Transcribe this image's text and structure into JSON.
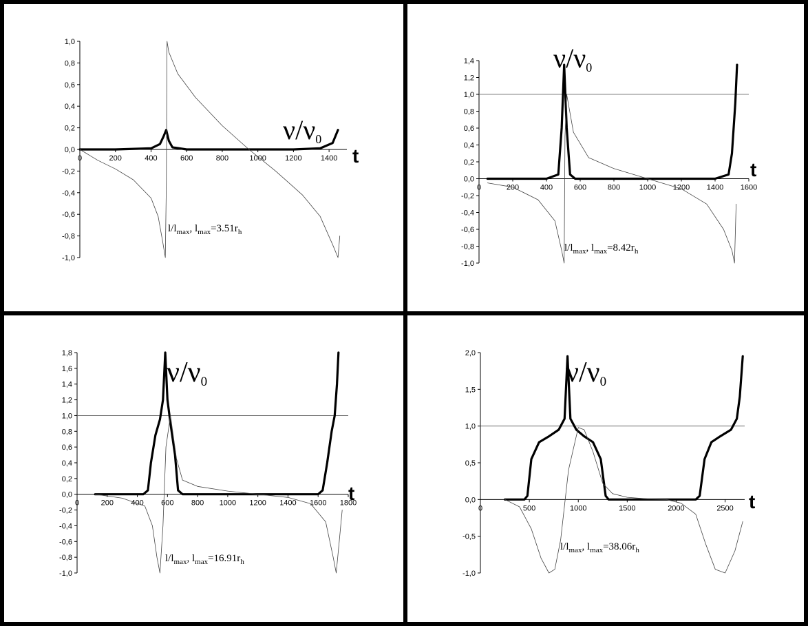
{
  "chart_data": [
    {
      "type": "line",
      "panel": "top-left",
      "xlabel": "t",
      "series_label": "ν/ν0",
      "annotation": "l/lmax, lmax=3.51rh",
      "ylim": [
        -1.0,
        1.0
      ],
      "xlim": [
        0,
        1500
      ],
      "y_ticks": [
        "1,0",
        "0,8",
        "0,6",
        "0,4",
        "0,2",
        "0,0",
        "-0,2",
        "-0,4",
        "-0,6",
        "-0,8",
        "-1,0"
      ],
      "x_ticks": [
        "0",
        "200",
        "400",
        "600",
        "800",
        "1000",
        "1200",
        "1400"
      ],
      "reference_line": null,
      "series": [
        {
          "style": "thick",
          "x": [
            0,
            200,
            400,
            450,
            470,
            485,
            500,
            520,
            600,
            800,
            1000,
            1200,
            1350,
            1420,
            1450
          ],
          "y": [
            0,
            0,
            0.01,
            0.05,
            0.12,
            0.18,
            0.08,
            0.02,
            0,
            0,
            0,
            0,
            0.01,
            0.06,
            0.18
          ]
        },
        {
          "style": "thin",
          "x": [
            0,
            100,
            200,
            300,
            400,
            440,
            465,
            480,
            486,
            490,
            500,
            550,
            650,
            800,
            950,
            1100,
            1250,
            1350,
            1420,
            1450,
            1460
          ],
          "y": [
            0,
            -0.1,
            -0.18,
            -0.28,
            -0.45,
            -0.62,
            -0.85,
            -1.0,
            -0.3,
            1.0,
            0.9,
            0.7,
            0.48,
            0.22,
            0,
            -0.2,
            -0.42,
            -0.62,
            -0.88,
            -1.0,
            -0.8
          ]
        }
      ]
    },
    {
      "type": "line",
      "panel": "top-right",
      "xlabel": "t",
      "series_label": "ν/ν0",
      "annotation": "l/lmax, lmax=8.42rh",
      "ylim": [
        -1.0,
        1.4
      ],
      "xlim": [
        0,
        1600
      ],
      "y_ticks": [
        "1,4",
        "1,2",
        "1,0",
        "0,8",
        "0,6",
        "0,4",
        "0,2",
        "0,0",
        "-0,2",
        "-0,4",
        "-0,6",
        "-0,8",
        "-1,0"
      ],
      "x_ticks": [
        "0",
        "200",
        "400",
        "600",
        "800",
        "1000",
        "1200",
        "1400",
        "1600"
      ],
      "reference_line": 1.0,
      "series": [
        {
          "style": "thick",
          "x": [
            50,
            400,
            470,
            490,
            505,
            520,
            540,
            570,
            800,
            1400,
            1480,
            1500,
            1520,
            1530
          ],
          "y": [
            0,
            0,
            0.05,
            0.6,
            1.35,
            0.6,
            0.05,
            0,
            0,
            0,
            0.05,
            0.3,
            0.9,
            1.35
          ]
        },
        {
          "style": "thin",
          "x": [
            50,
            200,
            350,
            450,
            490,
            505,
            510,
            520,
            560,
            650,
            800,
            1000,
            1200,
            1350,
            1450,
            1500,
            1515,
            1525
          ],
          "y": [
            -0.05,
            -0.1,
            -0.25,
            -0.5,
            -0.85,
            -1.0,
            0.5,
            1.0,
            0.55,
            0.25,
            0.12,
            0,
            -0.12,
            -0.3,
            -0.6,
            -0.85,
            -1.0,
            -0.3
          ]
        }
      ]
    },
    {
      "type": "line",
      "panel": "bottom-left",
      "xlabel": "t",
      "series_label": "ν/ν0",
      "annotation": "l/lmax, lmax=16.91rh",
      "ylim": [
        -1.0,
        1.8
      ],
      "xlim": [
        0,
        1800
      ],
      "y_ticks": [
        "1,8",
        "1,6",
        "1,4",
        "1,2",
        "1,0",
        "0,8",
        "0,6",
        "0,4",
        "0,2",
        "0,0",
        "-0,2",
        "-0,4",
        "-0,6",
        "-0,8",
        "-1,0"
      ],
      "x_ticks": [
        "0",
        "200",
        "400",
        "600",
        "800",
        "1000",
        "1200",
        "1400",
        "1600",
        "1800"
      ],
      "reference_line": 1.0,
      "series": [
        {
          "style": "thick",
          "x": [
            120,
            440,
            470,
            490,
            520,
            550,
            570,
            585,
            600,
            620,
            650,
            670,
            700,
            1000,
            1600,
            1630,
            1660,
            1690,
            1710,
            1725,
            1735
          ],
          "y": [
            0,
            0,
            0.05,
            0.4,
            0.75,
            0.95,
            1.2,
            1.8,
            1.2,
            0.9,
            0.5,
            0.05,
            0,
            0,
            0,
            0.05,
            0.4,
            0.8,
            1.0,
            1.4,
            1.8
          ]
        },
        {
          "style": "thin",
          "x": [
            120,
            300,
            450,
            500,
            530,
            550,
            570,
            590,
            620,
            660,
            700,
            800,
            1000,
            1200,
            1400,
            1550,
            1650,
            1700,
            1720,
            1740,
            1760
          ],
          "y": [
            0,
            -0.05,
            -0.15,
            -0.4,
            -0.8,
            -1.0,
            -0.4,
            0.6,
            1.0,
            0.45,
            0.18,
            0.1,
            0.04,
            0,
            -0.04,
            -0.12,
            -0.35,
            -0.8,
            -1.0,
            -0.6,
            -0.2
          ]
        }
      ]
    },
    {
      "type": "line",
      "panel": "bottom-right",
      "xlabel": "t",
      "series_label": "ν/ν0",
      "annotation": "l/lmax, lmax=38.06rh",
      "ylim": [
        -1.0,
        2.0
      ],
      "xlim": [
        0,
        2700
      ],
      "y_ticks": [
        "2,0",
        "1,5",
        "1,0",
        "0,5",
        "0,0",
        "-0,5",
        "-1,0"
      ],
      "x_ticks": [
        "0",
        "500",
        "1000",
        "1500",
        "2000",
        "2500"
      ],
      "reference_line": 1.0,
      "series": [
        {
          "style": "thick",
          "x": [
            250,
            450,
            480,
            520,
            600,
            700,
            800,
            860,
            890,
            920,
            980,
            1060,
            1150,
            1230,
            1280,
            1310,
            1400,
            2200,
            2240,
            2290,
            2360,
            2450,
            2560,
            2620,
            2650,
            2680
          ],
          "y": [
            0,
            0,
            0.05,
            0.55,
            0.78,
            0.86,
            0.95,
            1.1,
            1.95,
            1.1,
            0.95,
            0.86,
            0.78,
            0.55,
            0.05,
            0,
            0,
            0,
            0.05,
            0.55,
            0.78,
            0.86,
            0.95,
            1.1,
            1.4,
            1.95
          ]
        },
        {
          "style": "thin",
          "x": [
            250,
            400,
            520,
            620,
            700,
            760,
            820,
            900,
            1000,
            1060,
            1150,
            1250,
            1350,
            1500,
            1700,
            1900,
            2050,
            2200,
            2300,
            2400,
            2500,
            2600,
            2680
          ],
          "y": [
            0,
            -0.1,
            -0.4,
            -0.8,
            -1.0,
            -0.95,
            -0.55,
            0.4,
            0.98,
            0.95,
            0.65,
            0.22,
            0.08,
            0.03,
            0.01,
            0,
            -0.05,
            -0.2,
            -0.6,
            -0.95,
            -1.0,
            -0.7,
            -0.3
          ]
        }
      ]
    }
  ]
}
